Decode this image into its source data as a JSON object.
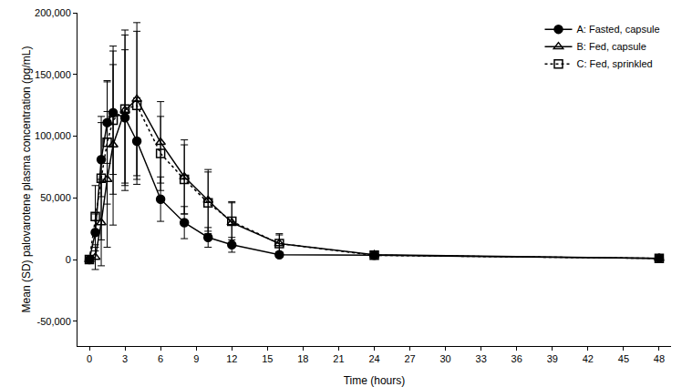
{
  "chart_data": {
    "type": "line",
    "x_label": "Time (hours)",
    "y_label": "Mean (SD) palovarotene plasma concentration (pg/mL)",
    "x": [
      0,
      0.5,
      1,
      1.5,
      2,
      3,
      4,
      6,
      8,
      10,
      12,
      16,
      24,
      48
    ],
    "series": [
      {
        "name": "A: Fasted, capsule",
        "color": "#000000",
        "marker": "circle",
        "line_style": "solid",
        "values": [
          0,
          22000,
          81000,
          111000,
          119000,
          115000,
          96000,
          49000,
          30000,
          18000,
          12000,
          4000,
          3500,
          1000
        ],
        "sd": [
          0,
          15000,
          30000,
          33000,
          50000,
          55000,
          35000,
          18000,
          13000,
          8000,
          6000,
          2000,
          1500,
          500
        ]
      },
      {
        "name": "B: Fed, capsule",
        "color": "#000000",
        "marker": "triangle-open",
        "line_style": "solid",
        "values": [
          0,
          2000,
          30000,
          65000,
          93000,
          121000,
          130000,
          95000,
          67000,
          48000,
          30000,
          13000,
          4000,
          1000
        ],
        "sd": [
          0,
          10000,
          35000,
          55000,
          65000,
          65000,
          62000,
          33000,
          30000,
          25000,
          17000,
          8000,
          2000,
          1000
        ]
      },
      {
        "name": "C: Fed, sprinkled",
        "color": "#000000",
        "marker": "square-open",
        "line_style": "dotted",
        "values": [
          0,
          35000,
          66000,
          95000,
          113000,
          122000,
          125000,
          86000,
          65000,
          46000,
          31000,
          13000,
          3500,
          1000
        ],
        "sd": [
          0,
          25000,
          50000,
          50000,
          60000,
          60000,
          60000,
          30000,
          28000,
          25000,
          15000,
          7000,
          1500,
          800
        ]
      }
    ],
    "xlim": [
      -1,
      49
    ],
    "xticks": [
      0,
      3,
      6,
      9,
      12,
      15,
      18,
      21,
      24,
      27,
      30,
      33,
      36,
      39,
      42,
      45,
      48
    ],
    "ylim": [
      -70000,
      200000
    ],
    "yticks": [
      {
        "value": -50000,
        "label": "-50,000"
      },
      0,
      {
        "value": 50000,
        "label": "50,000"
      },
      {
        "value": 100000,
        "label": "100,000"
      },
      {
        "value": 150000,
        "label": "150,000"
      },
      {
        "value": 200000,
        "label": "200,000"
      }
    ],
    "grid": false,
    "legend": "top right"
  }
}
